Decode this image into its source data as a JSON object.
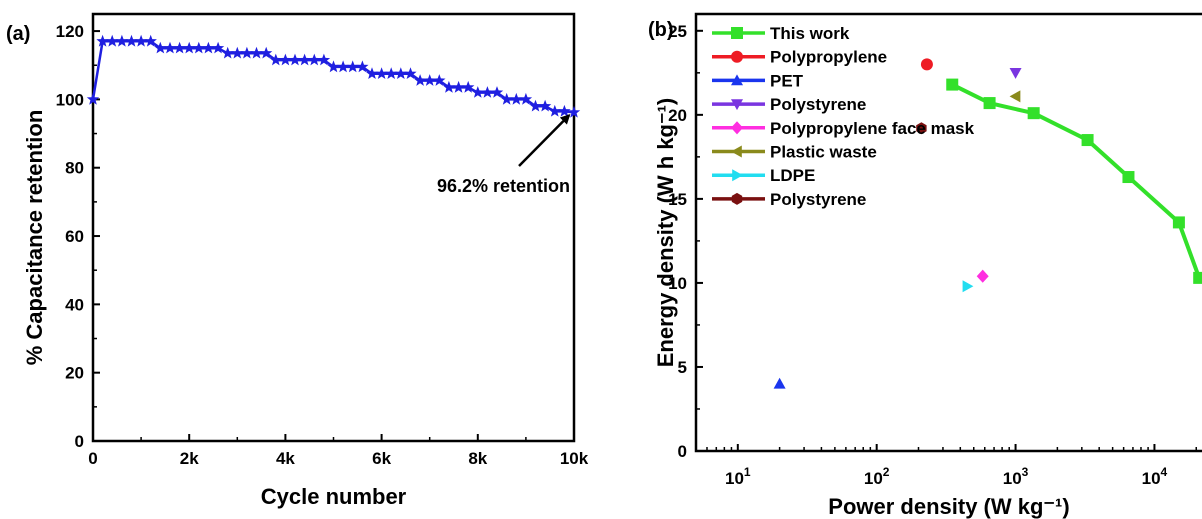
{
  "chart_data": [
    {
      "type": "line",
      "panel_label": "(a)",
      "xlabel": "Cycle number",
      "ylabel": "% Capacitance retention",
      "xlim": [
        0,
        10000
      ],
      "ylim": [
        0,
        125
      ],
      "xticks": [
        0,
        2000,
        4000,
        6000,
        8000,
        10000
      ],
      "xtick_labels": [
        "0",
        "2k",
        "4k",
        "6k",
        "8k",
        "10k"
      ],
      "yticks": [
        0,
        20,
        40,
        60,
        80,
        100,
        120
      ],
      "ytick_labels": [
        "0",
        "20",
        "40",
        "60",
        "80",
        "100",
        "120"
      ],
      "grid": false,
      "series": [
        {
          "color": "#1f1fe0",
          "marker": "star",
          "x": [
            0,
            200,
            400,
            600,
            800,
            1000,
            1200,
            1400,
            1600,
            1800,
            2000,
            2200,
            2400,
            2600,
            2800,
            3000,
            3200,
            3400,
            3600,
            3800,
            4000,
            4200,
            4400,
            4600,
            4800,
            5000,
            5200,
            5400,
            5600,
            5800,
            6000,
            6200,
            6400,
            6600,
            6800,
            7000,
            7200,
            7400,
            7600,
            7800,
            8000,
            8200,
            8400,
            8600,
            8800,
            9000,
            9200,
            9400,
            9600,
            9800,
            10000
          ],
          "y": [
            100,
            117,
            117,
            117,
            117,
            117,
            117,
            115,
            115,
            115,
            115,
            115,
            115,
            115,
            113.5,
            113.5,
            113.5,
            113.5,
            113.5,
            111.5,
            111.5,
            111.5,
            111.5,
            111.5,
            111.5,
            109.5,
            109.5,
            109.5,
            109.5,
            107.5,
            107.5,
            107.5,
            107.5,
            107.5,
            105.5,
            105.5,
            105.5,
            103.5,
            103.5,
            103.5,
            102,
            102,
            102,
            100,
            100,
            100,
            98,
            98,
            96.5,
            96.5,
            96.2
          ]
        }
      ],
      "annotation": {
        "text": "96.2% retention",
        "x": 10000,
        "y": 96.2
      }
    },
    {
      "type": "scatter",
      "panel_label": "(b)",
      "xlabel": "Power density (W kg⁻¹)",
      "ylabel": "Energy density (W h kg⁻¹)",
      "x_scale": "log",
      "xlim": [
        5,
        22000
      ],
      "ylim": [
        0,
        26
      ],
      "xticks": [
        10,
        100,
        1000,
        10000
      ],
      "xtick_labels": [
        "10",
        "10",
        "10",
        "10"
      ],
      "xtick_exponents": [
        "1",
        "2",
        "3",
        "4"
      ],
      "yticks": [
        0,
        5,
        10,
        15,
        20,
        25
      ],
      "ytick_labels": [
        "0",
        "5",
        "10",
        "15",
        "20",
        "25"
      ],
      "grid": false,
      "legend_position": "top-left",
      "series": [
        {
          "name": "This work",
          "color": "#33e02a",
          "marker": "square",
          "line": true,
          "x": [
            350,
            650,
            1350,
            3300,
            6500,
            15000,
            21000
          ],
          "y": [
            21.8,
            20.7,
            20.1,
            18.5,
            16.3,
            13.6,
            10.3
          ]
        },
        {
          "name": "Polypropylene",
          "color": "#ee1c24",
          "marker": "circle",
          "x": [
            230
          ],
          "y": [
            23.0
          ]
        },
        {
          "name": "PET",
          "color": "#1a35ee",
          "marker": "triangle-up",
          "x": [
            20
          ],
          "y": [
            4.0
          ]
        },
        {
          "name": "Polystyrene",
          "color": "#7a35e0",
          "marker": "triangle-down",
          "x": [
            1000
          ],
          "y": [
            22.5
          ]
        },
        {
          "name": "Polypropylene face mask",
          "color": "#ff2ee0",
          "marker": "diamond",
          "x": [
            580
          ],
          "y": [
            10.4
          ]
        },
        {
          "name": "Plastic waste",
          "color": "#8a8a1c",
          "marker": "triangle-left",
          "x": [
            1000
          ],
          "y": [
            21.1
          ]
        },
        {
          "name": "LDPE",
          "color": "#22ddf0",
          "marker": "triangle-right",
          "x": [
            450
          ],
          "y": [
            9.8
          ]
        },
        {
          "name": "Polystyrene",
          "color": "#7a1010",
          "marker": "hexagon",
          "x": [
            210
          ],
          "y": [
            19.2
          ]
        }
      ]
    }
  ]
}
